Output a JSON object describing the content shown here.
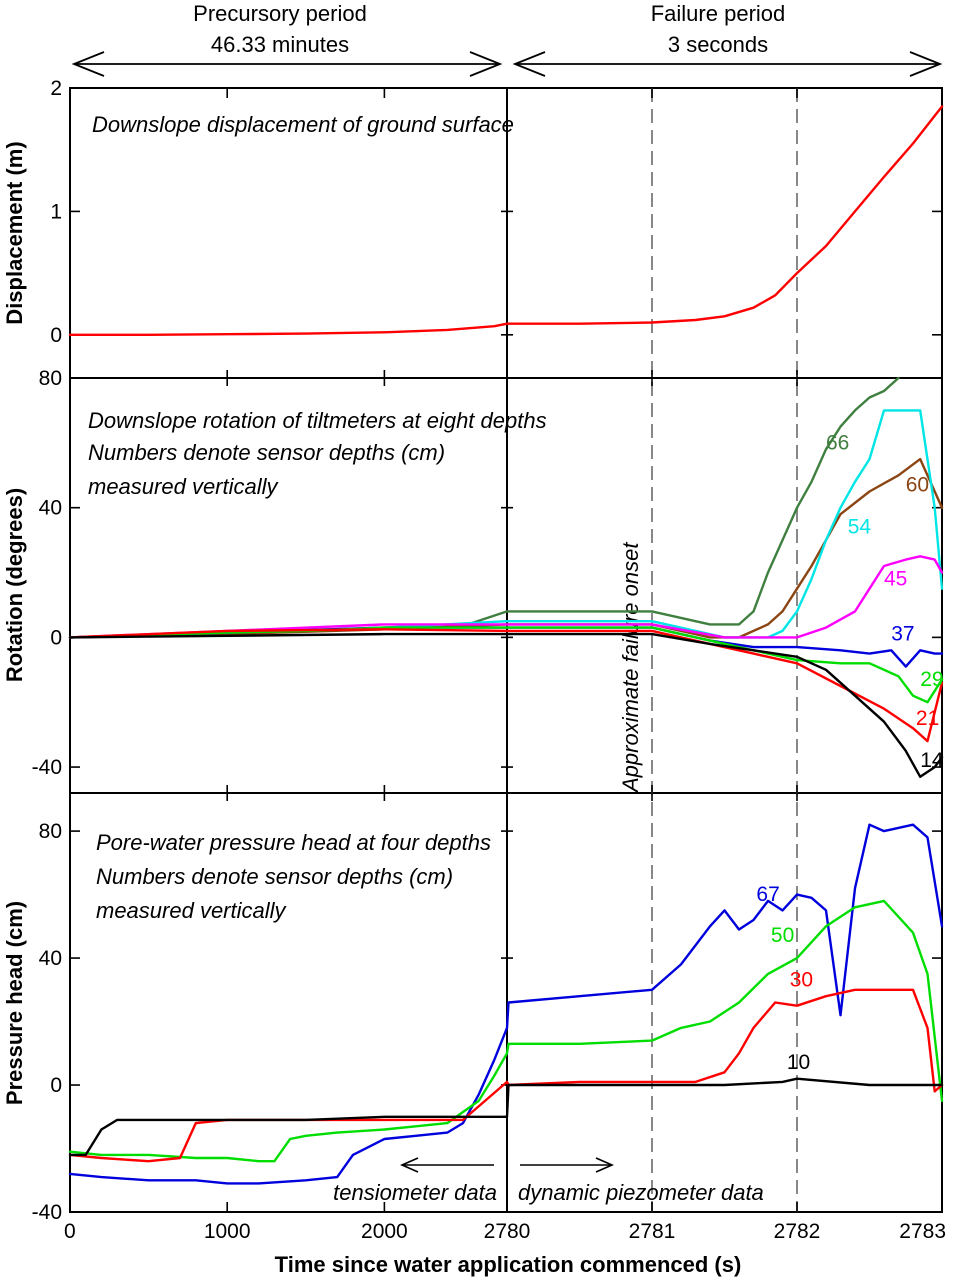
{
  "header": {
    "precursory": {
      "line1": "Precursory period",
      "line2": "46.33 minutes"
    },
    "failure": {
      "line1": "Failure period",
      "line2": "3 seconds"
    }
  },
  "x_axis": {
    "title": "Time since water application commenced (s)",
    "ticks": [
      "0",
      "1000",
      "2000",
      "2780",
      "2781",
      "2782",
      "2783"
    ],
    "segments": [
      {
        "name": "precursory",
        "range": [
          0,
          2780
        ]
      },
      {
        "name": "failure",
        "range": [
          2780,
          2783
        ]
      }
    ],
    "markers": [
      2781,
      2782
    ]
  },
  "chart_data": [
    {
      "type": "line",
      "title": "Downslope displacement of ground surface",
      "ylabel": "Displacement (m)",
      "ylim": [
        -0.35,
        2
      ],
      "yticks": [
        0,
        1,
        2
      ],
      "series": [
        {
          "color": "#ff0000",
          "x": [
            0,
            500,
            1000,
            1500,
            2000,
            2400,
            2700,
            2780,
            2780.5,
            2781,
            2781.3,
            2781.5,
            2781.7,
            2781.85,
            2782,
            2782.2,
            2782.4,
            2782.6,
            2782.8,
            2783
          ],
          "y": [
            0,
            0,
            0.005,
            0.01,
            0.02,
            0.04,
            0.07,
            0.09,
            0.09,
            0.1,
            0.12,
            0.15,
            0.22,
            0.32,
            0.5,
            0.72,
            1.0,
            1.28,
            1.55,
            1.85
          ]
        }
      ]
    },
    {
      "type": "line",
      "title": "Downslope rotation of tiltmeters at eight depths",
      "subtitle_lines": [
        "Numbers denote sensor depths (cm)",
        "measured vertically"
      ],
      "ylabel": "Rotation (degrees)",
      "ylim": [
        -48,
        80
      ],
      "yticks": [
        -40,
        0,
        40,
        80
      ],
      "annotation": "Approximate failure onset",
      "series": [
        {
          "name": "66",
          "color": "#3f7f3f",
          "x": [
            0,
            1000,
            2000,
            2500,
            2780,
            2781,
            2781.4,
            2781.6,
            2781.7,
            2781.8,
            2781.9,
            2782,
            2782.1,
            2782.2,
            2782.3,
            2782.4,
            2782.5,
            2782.6,
            2782.7
          ],
          "y": [
            0,
            1.5,
            2.5,
            3.5,
            8,
            8,
            4,
            4,
            8,
            20,
            30,
            40,
            48,
            58,
            65,
            70,
            74,
            76,
            80
          ]
        },
        {
          "name": "60",
          "color": "#8b4513",
          "x": [
            0,
            1000,
            2000,
            2780,
            2781,
            2781.4,
            2781.6,
            2781.7,
            2781.8,
            2781.9,
            2782,
            2782.1,
            2782.2,
            2782.3,
            2782.5,
            2782.7,
            2782.85,
            2783
          ],
          "y": [
            0,
            1,
            2.5,
            4,
            4,
            0,
            0,
            2,
            4,
            8,
            15,
            22,
            30,
            38,
            45,
            50,
            55,
            40
          ]
        },
        {
          "name": "54",
          "color": "#00e5e5",
          "x": [
            0,
            1000,
            2000,
            2780,
            2781,
            2781.5,
            2781.8,
            2781.9,
            2782,
            2782.1,
            2782.2,
            2782.3,
            2782.4,
            2782.5,
            2782.6,
            2782.75,
            2782.85,
            2782.95,
            2783
          ],
          "y": [
            0,
            1.5,
            3,
            5,
            5,
            0,
            0,
            2,
            8,
            18,
            30,
            40,
            48,
            55,
            70,
            70,
            70,
            40,
            15
          ]
        },
        {
          "name": "45",
          "color": "#ff00ff",
          "x": [
            0,
            1000,
            2000,
            2780,
            2781,
            2781.5,
            2782,
            2782.2,
            2782.4,
            2782.5,
            2782.6,
            2782.75,
            2782.85,
            2782.95,
            2783
          ],
          "y": [
            0,
            2,
            4,
            4,
            4,
            0,
            0,
            3,
            8,
            15,
            22,
            24,
            25,
            24,
            20
          ]
        },
        {
          "name": "37",
          "color": "#0000dd",
          "x": [
            0,
            1000,
            2000,
            2780,
            2781,
            2781.4,
            2781.7,
            2782,
            2782.3,
            2782.5,
            2782.65,
            2782.75,
            2782.85,
            2782.95,
            2783
          ],
          "y": [
            0,
            1.5,
            3,
            3,
            3,
            -1,
            -3,
            -3,
            -4,
            -5,
            -4,
            -9,
            -4,
            -5,
            -5
          ]
        },
        {
          "name": "29",
          "color": "#00dd00",
          "x": [
            0,
            1000,
            1500,
            2000,
            2780,
            2781,
            2781.4,
            2781.7,
            2782,
            2782.3,
            2782.5,
            2782.7,
            2782.8,
            2782.9,
            2783
          ],
          "y": [
            0,
            1.5,
            2,
            3,
            3,
            3,
            -1,
            -4,
            -7,
            -8,
            -8,
            -12,
            -18,
            -20,
            -13
          ]
        },
        {
          "name": "21",
          "color": "#ff0000",
          "x": [
            0,
            1000,
            2000,
            2780,
            2781,
            2781.4,
            2781.7,
            2782,
            2782.3,
            2782.6,
            2782.8,
            2782.9,
            2783
          ],
          "y": [
            0,
            2,
            2.5,
            2,
            2,
            -2,
            -5,
            -8,
            -15,
            -22,
            -28,
            -32,
            -14
          ]
        },
        {
          "name": "14",
          "color": "#000000",
          "x": [
            0,
            1000,
            2000,
            2780,
            2781,
            2781.4,
            2781.7,
            2782,
            2782.2,
            2782.4,
            2782.6,
            2782.75,
            2782.85,
            2782.95,
            2783
          ],
          "y": [
            0,
            0.5,
            1,
            1,
            1,
            -2,
            -4,
            -6,
            -10,
            -18,
            -26,
            -35,
            -43,
            -40,
            -37
          ]
        }
      ]
    },
    {
      "type": "line",
      "title": "Pore-water pressure head at four depths",
      "subtitle_lines": [
        "Numbers denote sensor depths (cm)",
        "measured vertically"
      ],
      "ylabel": "Pressure head (cm)",
      "ylim": [
        -40,
        92
      ],
      "yticks": [
        -40,
        0,
        40,
        80
      ],
      "annotations": [
        {
          "text": "tensiometer data"
        },
        {
          "text": "dynamic piezometer data"
        }
      ],
      "series": [
        {
          "name": "67",
          "color": "#0000dd",
          "x": [
            0,
            200,
            500,
            800,
            1000,
            1200,
            1500,
            1700,
            1800,
            2000,
            2200,
            2400,
            2500,
            2600,
            2700,
            2780,
            2780.01,
            2780.5,
            2781,
            2781.2,
            2781.4,
            2781.5,
            2781.6,
            2781.7,
            2781.8,
            2781.9,
            2782,
            2782.1,
            2782.2,
            2782.3,
            2782.4,
            2782.5,
            2782.6,
            2782.8,
            2782.9,
            2783
          ],
          "y": [
            -28,
            -29,
            -30,
            -30,
            -31,
            -31,
            -30,
            -29,
            -22,
            -17,
            -16,
            -15,
            -12,
            -3,
            8,
            18,
            26,
            28,
            30,
            38,
            50,
            55,
            49,
            52,
            58,
            55,
            60,
            59,
            55,
            22,
            62,
            82,
            80,
            82,
            78,
            50
          ]
        },
        {
          "name": "50",
          "color": "#00dd00",
          "x": [
            0,
            200,
            500,
            800,
            1000,
            1200,
            1300,
            1400,
            1500,
            1700,
            2000,
            2200,
            2400,
            2600,
            2700,
            2780,
            2780.01,
            2780.5,
            2781,
            2781.2,
            2781.4,
            2781.6,
            2781.8,
            2782,
            2782.2,
            2782.4,
            2782.6,
            2782.8,
            2782.9,
            2783
          ],
          "y": [
            -21,
            -22,
            -22,
            -23,
            -23,
            -24,
            -24,
            -17,
            -16,
            -15,
            -14,
            -13,
            -12,
            -5,
            3,
            10,
            13,
            13,
            14,
            18,
            20,
            26,
            35,
            40,
            50,
            56,
            58,
            48,
            35,
            -5
          ]
        },
        {
          "name": "30",
          "color": "#ff0000",
          "x": [
            0,
            200,
            500,
            700,
            800,
            1000,
            1500,
            2000,
            2500,
            2780,
            2780.01,
            2780.5,
            2781,
            2781.3,
            2781.5,
            2781.6,
            2781.7,
            2781.85,
            2782,
            2782.2,
            2782.4,
            2782.6,
            2782.8,
            2782.9,
            2782.95,
            2783
          ],
          "y": [
            -22,
            -23,
            -24,
            -23,
            -12,
            -11,
            -11,
            -11,
            -11,
            1,
            0,
            1,
            1,
            1,
            4,
            10,
            18,
            26,
            25,
            28,
            30,
            30,
            30,
            18,
            -2,
            0
          ]
        },
        {
          "name": "10",
          "color": "#000000",
          "x": [
            0,
            100,
            200,
            300,
            500,
            1000,
            1500,
            2000,
            2500,
            2780,
            2780.01,
            2781,
            2781.5,
            2781.9,
            2782,
            2782.5,
            2783
          ],
          "y": [
            -22,
            -22,
            -14,
            -11,
            -11,
            -11,
            -11,
            -10,
            -10,
            -10,
            0,
            0,
            0,
            1,
            2,
            0,
            0
          ]
        }
      ]
    }
  ]
}
